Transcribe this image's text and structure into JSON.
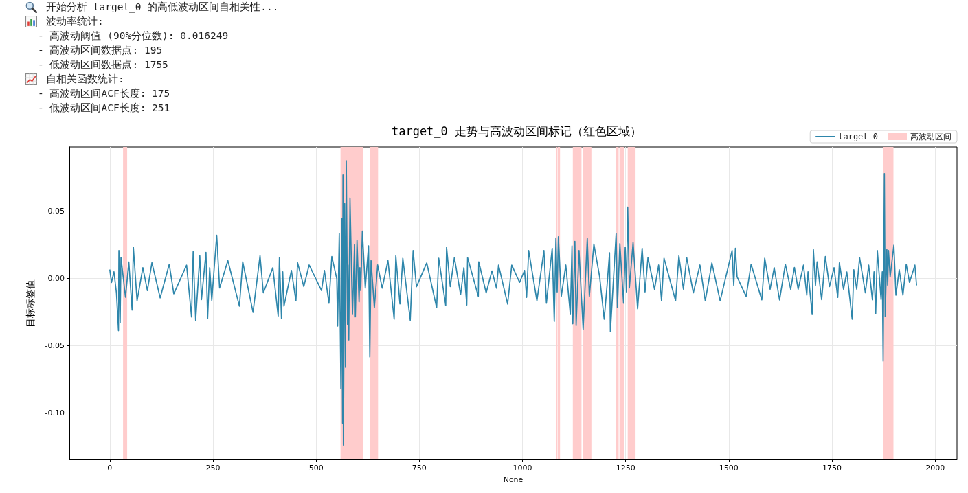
{
  "chart_data": {
    "type": "line",
    "title": "target_0 走势与高波动区间标记（红色区域）",
    "xlabel": "None",
    "ylabel": "目标标签值",
    "annotations": [
      "开始分析 target_0 的高低波动区间自相关性...",
      "波动率统计:",
      "- 高波动阈值 (90%分位数): 0.016249",
      "- 高波动区间数据点: 195",
      "- 低波动区间数据点: 1755",
      "自相关函数统计:",
      "- 高波动区间ACF长度: 175",
      "- 低波动区间ACF长度: 251"
    ],
    "x": [
      0,
      4,
      10,
      16,
      21,
      22,
      25,
      27,
      38,
      46,
      54,
      57,
      66,
      80,
      91,
      102,
      122,
      144,
      155,
      186,
      198,
      202,
      208,
      218,
      222,
      233,
      237,
      242,
      247,
      259,
      266,
      286,
      314,
      322,
      347,
      364,
      372,
      395,
      408,
      411,
      416,
      419,
      422,
      440,
      451,
      455,
      470,
      483,
      513,
      520,
      531,
      538,
      550,
      552,
      556,
      560,
      562,
      564,
      565,
      566,
      569,
      571,
      573,
      576,
      577,
      579,
      582,
      588,
      593,
      595,
      599,
      604,
      606,
      608,
      612,
      619,
      627,
      630,
      633,
      641,
      649,
      660,
      674,
      689,
      693,
      703,
      710,
      728,
      735,
      743,
      768,
      792,
      797,
      814,
      816,
      825,
      835,
      850,
      858,
      865,
      867,
      893,
      894,
      912,
      926,
      937,
      942,
      964,
      974,
      993,
      1005,
      1010,
      1015,
      1035,
      1052,
      1058,
      1072,
      1077,
      1081,
      1084,
      1087,
      1094,
      1105,
      1116,
      1120,
      1122,
      1127,
      1130,
      1137,
      1147,
      1157,
      1162,
      1173,
      1187,
      1198,
      1205,
      1211,
      1213,
      1227,
      1230,
      1236,
      1245,
      1249,
      1252,
      1255,
      1259,
      1268,
      1279,
      1290,
      1297,
      1304,
      1320,
      1330,
      1337,
      1343,
      1371,
      1379,
      1390,
      1398,
      1414,
      1430,
      1443,
      1459,
      1479,
      1508,
      1512,
      1516,
      1520,
      1542,
      1554,
      1580,
      1587,
      1600,
      1610,
      1623,
      1637,
      1650,
      1659,
      1668,
      1681,
      1689,
      1692,
      1702,
      1705,
      1710,
      1714,
      1725,
      1734,
      1744,
      1755,
      1764,
      1768,
      1778,
      1786,
      1799,
      1803,
      1810,
      1817,
      1831,
      1839,
      1848,
      1852,
      1856,
      1860,
      1869,
      1872,
      1874,
      1877,
      1879,
      1883,
      1885,
      1887,
      1891,
      1900,
      1905,
      1913,
      1922,
      1930,
      1938,
      1951,
      1955
    ],
    "series": [
      {
        "name": "target_0",
        "color": "#2e86ab",
        "values": [
          0.0063,
          -0.003,
          0.005,
          -0.0107,
          -0.0388,
          0.0208,
          -0.033,
          0.0155,
          -0.014,
          0.0122,
          -0.0235,
          0.0233,
          -0.0166,
          0.008,
          -0.009,
          0.0117,
          -0.0144,
          0.0106,
          -0.0114,
          0.0099,
          -0.0286,
          0.0199,
          -0.0311,
          0.0168,
          -0.0157,
          0.0194,
          -0.0298,
          0.008,
          -0.0163,
          0.0322,
          -0.0071,
          0.0133,
          -0.0206,
          0.0124,
          -0.0252,
          0.017,
          -0.0107,
          0.008,
          -0.028,
          0.0155,
          -0.0298,
          0.005,
          -0.0206,
          0.006,
          -0.0166,
          0.0117,
          -0.006,
          0.01,
          -0.009,
          0.006,
          -0.0184,
          0.0163,
          -0.0002,
          -0.0354,
          0.0335,
          -0.0821,
          0.0446,
          -0.1076,
          0.0769,
          -0.1238,
          0.0556,
          -0.066,
          0.0876,
          -0.034,
          0.01,
          -0.0456,
          0.0599,
          -0.0268,
          0.025,
          -0.0285,
          0.0284,
          -0.0174,
          0.008,
          -0.009,
          0.0352,
          -0.0072,
          0.0242,
          -0.0583,
          0.0133,
          -0.0218,
          0.01,
          -0.0072,
          0.0133,
          -0.0303,
          0.0168,
          -0.0189,
          0.0151,
          -0.0311,
          0.0208,
          -0.0062,
          0.0116,
          -0.0218,
          0.0151,
          -0.0202,
          0.0233,
          -0.006,
          0.0155,
          -0.012,
          0.008,
          -0.0197,
          0.0155,
          -0.0133,
          0.0124,
          -0.0107,
          0.0056,
          -0.0072,
          0.0099,
          -0.019,
          0.0099,
          -0.0029,
          0.006,
          -0.0141,
          0.0208,
          -0.0166,
          0.0208,
          -0.0184,
          0.0225,
          -0.032,
          0.0301,
          -0.01,
          0.031,
          -0.0133,
          0.01,
          -0.0268,
          0.0242,
          -0.0337,
          0.0276,
          -0.035,
          0.0208,
          -0.0379,
          0.0298,
          -0.0133,
          0.0256,
          0.0012,
          -0.0303,
          -0.005,
          0.0191,
          -0.0396,
          0.0335,
          -0.0218,
          0.0259,
          -0.0184,
          0.0233,
          -0.01,
          0.0531,
          -0.0071,
          0.0267,
          -0.0225,
          0.0225,
          -0.01,
          0.0155,
          -0.008,
          0.01,
          -0.0166,
          0.0151,
          -0.0166,
          0.0168,
          -0.008,
          0.0155,
          -0.0107,
          0.01,
          -0.0166,
          0.0116,
          -0.0166,
          0.0208,
          -0.005,
          0.0225,
          0.0012,
          -0.0133,
          0.0106,
          -0.0159,
          0.0151,
          -0.008,
          0.008,
          -0.016,
          0.0106,
          -0.008,
          0.0082,
          -0.008,
          0.0099,
          -0.0124,
          0.005,
          -0.0268,
          0.0214,
          -0.005,
          0.0124,
          -0.0157,
          0.0163,
          -0.006,
          0.008,
          -0.0141,
          0.0116,
          -0.008,
          0.0048,
          -0.0303,
          0.0065,
          -0.008,
          0.0155,
          -0.0107,
          0.0099,
          -0.0159,
          0.005,
          -0.0261,
          0.0208,
          -0.0157,
          0.005,
          -0.0614,
          0.078,
          -0.0283,
          0.0214,
          -0.005,
          0.0208,
          0.0012,
          0.0248,
          -0.0124,
          0.0065,
          -0.0124,
          0.0106,
          -0.0029,
          0.0099,
          -0.0048
        ]
      }
    ],
    "xlim": [
      -98,
      2053
    ],
    "ylim": [
      -0.1345,
      0.0978
    ],
    "xticks": [
      0,
      250,
      500,
      750,
      1000,
      1250,
      1500,
      1750,
      2000
    ],
    "yticks": [
      {
        "value": -0.1,
        "label": "-0.10"
      },
      -0.05,
      {
        "value": 0,
        "label": "0.00"
      },
      0.05
    ],
    "bands": [
      {
        "axis": "x",
        "from": 32,
        "to": 42,
        "label": "高波动区间",
        "color": "#ffcccc"
      },
      {
        "axis": "x",
        "from": 559,
        "to": 613,
        "color": "#ffcccc"
      },
      {
        "axis": "x",
        "from": 630,
        "to": 650,
        "color": "#ffcccc"
      },
      {
        "axis": "x",
        "from": 1081,
        "to": 1084,
        "color": "#ffcccc"
      },
      {
        "axis": "x",
        "from": 1085,
        "to": 1091,
        "color": "#ffcccc"
      },
      {
        "axis": "x",
        "from": 1122,
        "to": 1143,
        "color": "#ffcccc"
      },
      {
        "axis": "x",
        "from": 1146,
        "to": 1167,
        "color": "#ffcccc"
      },
      {
        "axis": "x",
        "from": 1227,
        "to": 1233,
        "color": "#ffcccc"
      },
      {
        "axis": "x",
        "from": 1235,
        "to": 1247,
        "color": "#ffcccc"
      },
      {
        "axis": "x",
        "from": 1255,
        "to": 1274,
        "color": "#ffcccc"
      },
      {
        "axis": "x",
        "from": 1874,
        "to": 1899,
        "color": "#ffcccc"
      }
    ],
    "grid": true,
    "legend": "top right"
  }
}
